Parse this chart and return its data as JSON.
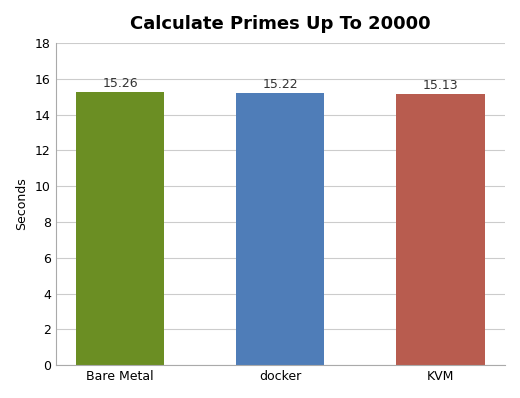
{
  "categories": [
    "Bare Metal",
    "docker",
    "KVM"
  ],
  "values": [
    15.26,
    15.22,
    15.13
  ],
  "bar_colors": [
    "#6b8e23",
    "#4f7db8",
    "#b85c4f"
  ],
  "title": "Calculate Primes Up To 20000",
  "ylabel": "Seconds",
  "ylim": [
    0,
    18
  ],
  "yticks": [
    0,
    2,
    4,
    6,
    8,
    10,
    12,
    14,
    16,
    18
  ],
  "title_fontsize": 13,
  "label_fontsize": 9,
  "tick_fontsize": 9,
  "bar_width": 0.55,
  "background_color": "#ffffff",
  "grid_color": "#cccccc"
}
